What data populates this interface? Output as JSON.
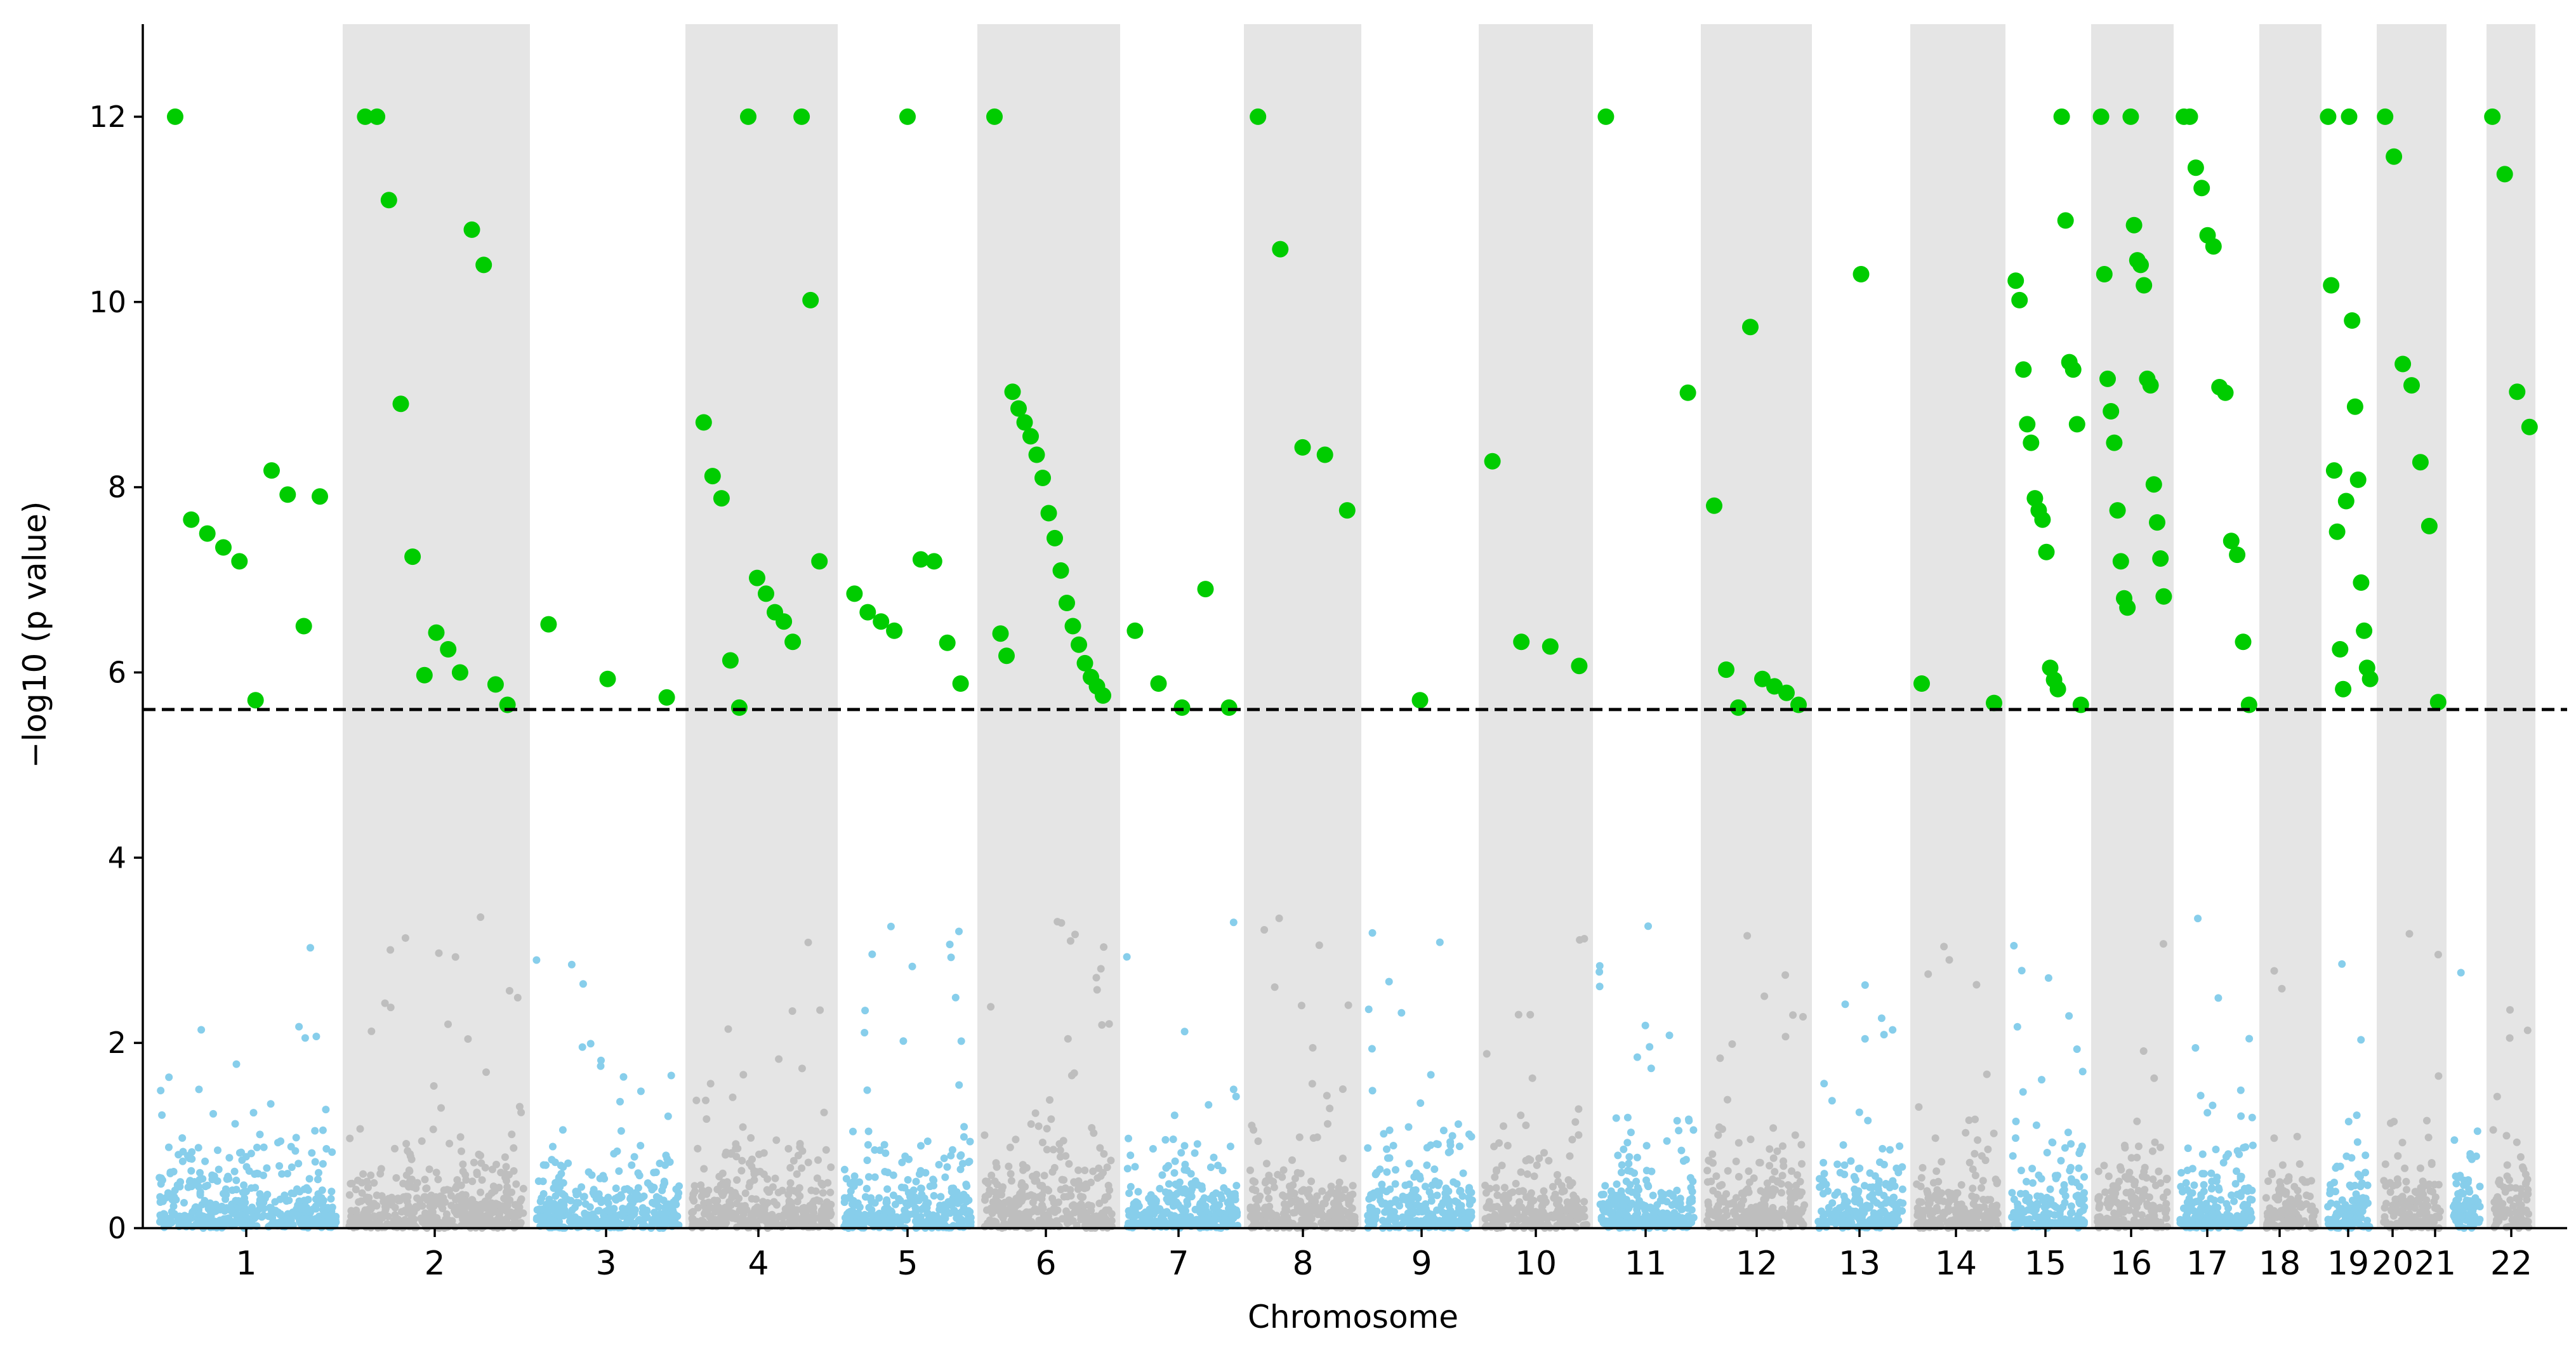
{
  "chart_data": {
    "type": "scatter",
    "subtype": "manhattan",
    "title": "",
    "xlabel": "Chromosome",
    "ylabel": "−log10 (p value)",
    "ylim": [
      0,
      13
    ],
    "y_ticks": [
      0,
      2,
      4,
      6,
      8,
      10,
      12
    ],
    "threshold": 5.6,
    "colors": {
      "odd_points": "#87ceeb",
      "even_points": "#bebebe",
      "significant": "#00cc00",
      "shading": "#e5e5e5",
      "threshold_line": "#000000"
    },
    "chromosomes": [
      {
        "label": "1",
        "significant": [
          12,
          7.65,
          7.5,
          7.35,
          7.2,
          5.7,
          8.18,
          7.92,
          6.5,
          7.9
        ]
      },
      {
        "label": "2",
        "significant": [
          12,
          12,
          11.1,
          8.9,
          7.25,
          5.97,
          6.43,
          6.25,
          6.0,
          10.78,
          10.4,
          5.87,
          5.65
        ]
      },
      {
        "label": "3",
        "significant": [
          6.52,
          5.93,
          5.73
        ]
      },
      {
        "label": "4",
        "significant": [
          8.7,
          8.12,
          7.88,
          6.13,
          5.62,
          12,
          7.02,
          6.85,
          6.65,
          6.55,
          6.33,
          12,
          10.02,
          7.2
        ]
      },
      {
        "label": "5",
        "significant": [
          6.85,
          6.65,
          6.55,
          6.45,
          12,
          7.22,
          7.2,
          6.32,
          5.88
        ]
      },
      {
        "label": "6",
        "significant": [
          12,
          6.42,
          6.18,
          9.03,
          8.85,
          8.7,
          8.55,
          8.35,
          8.1,
          7.72,
          7.45,
          7.1,
          6.75,
          6.5,
          6.3,
          6.1,
          5.95,
          5.85,
          5.75
        ]
      },
      {
        "label": "7",
        "significant": [
          6.45,
          5.88,
          5.62,
          6.9,
          5.62
        ]
      },
      {
        "label": "8",
        "significant": [
          12,
          10.57,
          8.43,
          8.35,
          7.75
        ]
      },
      {
        "label": "9",
        "significant": [
          5.7
        ]
      },
      {
        "label": "10",
        "significant": [
          8.28,
          6.33,
          6.28,
          6.07
        ]
      },
      {
        "label": "11",
        "significant": [
          12,
          9.02
        ]
      },
      {
        "label": "12",
        "significant": [
          7.8,
          6.03,
          5.62,
          9.73,
          5.93,
          5.85,
          5.78,
          5.65
        ]
      },
      {
        "label": "13",
        "significant": [
          10.3
        ]
      },
      {
        "label": "14",
        "significant": [
          5.88,
          5.67
        ]
      },
      {
        "label": "15",
        "significant": [
          10.23,
          10.02,
          9.27,
          8.68,
          8.48,
          7.88,
          7.75,
          7.65,
          7.3,
          6.05,
          5.92,
          5.82,
          12,
          10.88,
          9.35,
          9.27,
          8.68,
          5.65
        ]
      },
      {
        "label": "16",
        "significant": [
          12,
          10.3,
          9.17,
          8.82,
          8.48,
          7.75,
          7.2,
          6.8,
          6.7,
          12,
          10.83,
          10.45,
          10.4,
          10.18,
          9.17,
          9.1,
          8.03,
          7.62,
          7.23,
          6.82
        ]
      },
      {
        "label": "17",
        "significant": [
          12,
          12,
          11.45,
          11.23,
          10.72,
          10.6,
          9.08,
          9.02,
          7.42,
          7.27,
          6.33,
          5.65
        ]
      },
      {
        "label": "18",
        "significant": []
      },
      {
        "label": "19",
        "significant": [
          12,
          10.18,
          8.18,
          7.52,
          6.25,
          5.82,
          7.85,
          12,
          9.8,
          8.87,
          8.08,
          6.97,
          6.45,
          6.05,
          5.93
        ]
      },
      {
        "label": "20",
        "significant": [
          12,
          11.57,
          9.33,
          9.1,
          8.27,
          7.58,
          5.68
        ]
      },
      {
        "label": "21",
        "significant": []
      },
      {
        "label": "22",
        "significant": [
          12,
          11.38,
          9.03,
          8.65
        ]
      }
    ]
  }
}
